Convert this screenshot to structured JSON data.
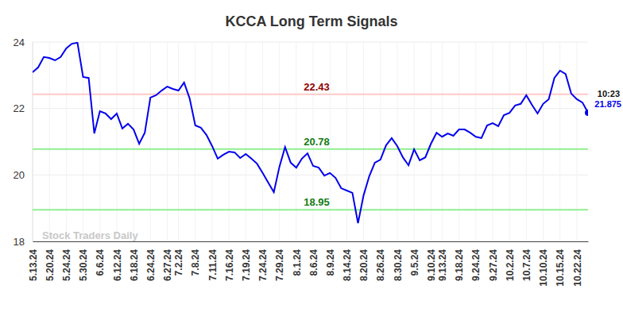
{
  "chart_data": {
    "type": "line",
    "title": "KCCA Long Term Signals",
    "watermark": "Stock Traders Daily",
    "annotations": [
      "10:23"
    ],
    "categories": [
      "5.13.24",
      null,
      null,
      "5.20.24",
      null,
      null,
      "5.24.24",
      null,
      null,
      "5.30.24",
      null,
      null,
      "6.6.24",
      null,
      null,
      "6.12.24",
      null,
      null,
      "6.18.24",
      null,
      null,
      "6.24.24",
      null,
      null,
      "6.27.24",
      null,
      "7.2.24",
      null,
      null,
      "7.8.24",
      null,
      null,
      "7.11.24",
      null,
      null,
      "7.16.24",
      null,
      null,
      "7.19.24",
      null,
      null,
      "7.24.24",
      null,
      null,
      "7.29.24",
      null,
      null,
      "8.1.24",
      null,
      null,
      "8.6.24",
      null,
      null,
      "8.9.24",
      null,
      null,
      "8.14.24",
      null,
      null,
      "8.20.24",
      null,
      null,
      "8.26.24",
      null,
      null,
      "8.30.24",
      null,
      null,
      "9.5.24",
      null,
      null,
      "9.10.24",
      null,
      "9.13.24",
      null,
      null,
      "9.18.24",
      null,
      null,
      "9.24.24",
      null,
      null,
      "9.27.24",
      null,
      null,
      "10.2.24",
      null,
      null,
      "10.7.24",
      null,
      null,
      "10.10.24",
      null,
      null,
      "10.15.24",
      null,
      null,
      "10.22.24",
      null,
      null
    ],
    "series": [
      {
        "name": "KCCA",
        "color": "#0000ee",
        "values": [
          23.09,
          23.24,
          23.55,
          23.52,
          23.45,
          23.55,
          23.81,
          23.95,
          23.98,
          22.95,
          22.92,
          21.25,
          21.92,
          21.85,
          21.68,
          21.85,
          21.4,
          21.54,
          21.37,
          20.94,
          21.27,
          22.33,
          22.4,
          22.54,
          22.66,
          22.59,
          22.54,
          22.78,
          22.3,
          21.49,
          21.42,
          21.2,
          20.87,
          20.49,
          20.61,
          20.7,
          20.68,
          20.51,
          20.63,
          20.49,
          20.34,
          20.06,
          19.77,
          19.48,
          20.25,
          20.84,
          20.37,
          20.22,
          20.49,
          20.65,
          20.27,
          20.22,
          19.98,
          20.06,
          19.91,
          19.6,
          19.53,
          19.46,
          18.55,
          19.39,
          19.96,
          20.37,
          20.46,
          20.89,
          21.11,
          20.87,
          20.53,
          20.29,
          20.77,
          20.44,
          20.53,
          20.94,
          21.27,
          21.15,
          21.25,
          21.18,
          21.37,
          21.37,
          21.27,
          21.15,
          21.11,
          21.49,
          21.56,
          21.47,
          21.8,
          21.87,
          22.09,
          22.14,
          22.4,
          22.11,
          21.85,
          22.14,
          22.28,
          22.92,
          23.14,
          23.04,
          22.45,
          22.28,
          22.18,
          21.875
        ]
      }
    ],
    "lines": [
      {
        "value": 22.43,
        "color": "#ffc8c8"
      },
      {
        "value": 20.78,
        "color": "#90ee90"
      },
      {
        "value": 18.95,
        "color": "#90ee90"
      }
    ],
    "ylim": [
      18,
      24
    ],
    "yticks": [
      18,
      20,
      22,
      24
    ],
    "grid": true
  }
}
